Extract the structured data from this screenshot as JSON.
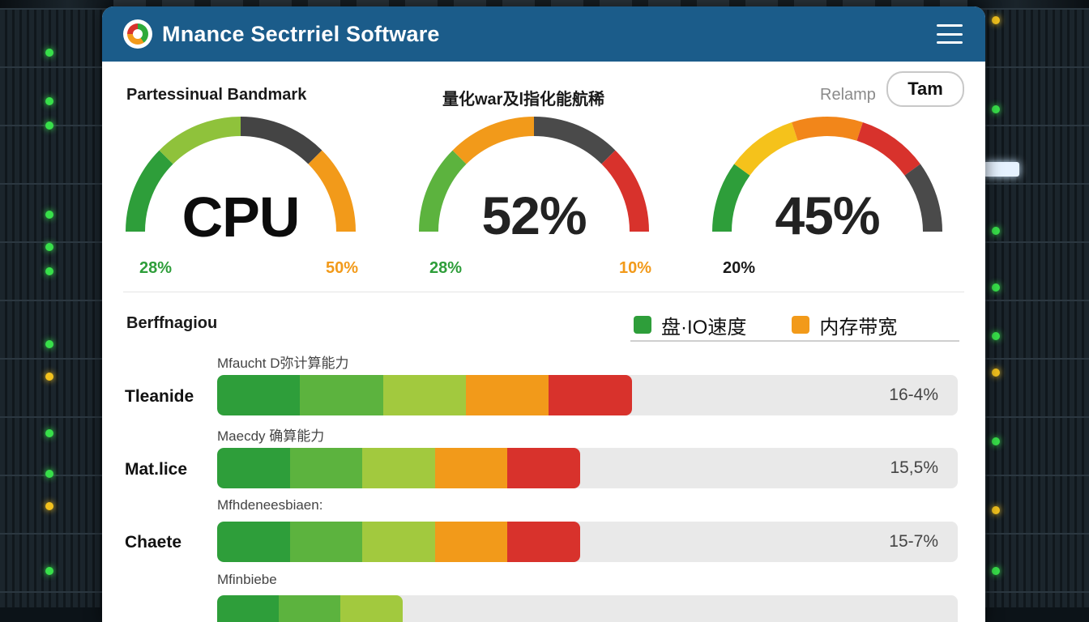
{
  "app": {
    "title": "Mnance Sectrriel Software"
  },
  "gauges": {
    "heading_left": "Partessinual Bandmark",
    "heading_mid": "量化war及l指化能航稀",
    "relamp_label": "Relamp",
    "team_button": "Tam",
    "items": [
      {
        "center": "CPU",
        "min": "28%",
        "max": "50%",
        "min_color": "#2e9e3a",
        "max_color": "#f29a1a",
        "segments": [
          "#2e9e3a",
          "#8fc23b",
          "#444444",
          "#f29a1a"
        ]
      },
      {
        "center": "52%",
        "min": "28%",
        "max": "10%",
        "min_color": "#2e9e3a",
        "max_color": "#f29a1a",
        "segments": [
          "#5cb33e",
          "#f29a1a",
          "#4a4a4a",
          "#d8322c"
        ]
      },
      {
        "center": "45%",
        "min": "20%",
        "max": "",
        "min_color": "#1a1a1a",
        "max_color": "#1a1a1a",
        "segments": [
          "#2e9e3a",
          "#f5c21b",
          "#f2861a",
          "#d8322c",
          "#4a4a4a"
        ]
      }
    ]
  },
  "bars": {
    "section_title": "Berffnagiou",
    "legend": [
      {
        "label": "盘·IO速度",
        "color": "#2e9e3a"
      },
      {
        "label": "内存带宽",
        "color": "#f29a1a"
      }
    ],
    "rows": [
      {
        "sub": "Mfaucht D弥计算能力",
        "label": "Tleanide",
        "value": "16-4%",
        "fill": 0.56,
        "segments": [
          "#2e9e3a",
          "#5cb33e",
          "#a2c93e",
          "#f29a1a",
          "#d8322c"
        ]
      },
      {
        "sub": "Maecdy 确算能力",
        "label": "Mat.lice",
        "value": "15,5%",
        "fill": 0.49,
        "segments": [
          "#2e9e3a",
          "#5cb33e",
          "#a2c93e",
          "#f29a1a",
          "#d8322c"
        ]
      },
      {
        "sub": "Mfhdeneesbiaen:",
        "label": "Chaete",
        "value": "15-7%",
        "fill": 0.49,
        "segments": [
          "#2e9e3a",
          "#5cb33e",
          "#a2c93e",
          "#f29a1a",
          "#d8322c"
        ]
      },
      {
        "sub": "Mfinbiebe",
        "label": "",
        "value": "",
        "fill": 0.25,
        "segments": [
          "#2e9e3a",
          "#5cb33e",
          "#a2c93e"
        ]
      }
    ]
  }
}
